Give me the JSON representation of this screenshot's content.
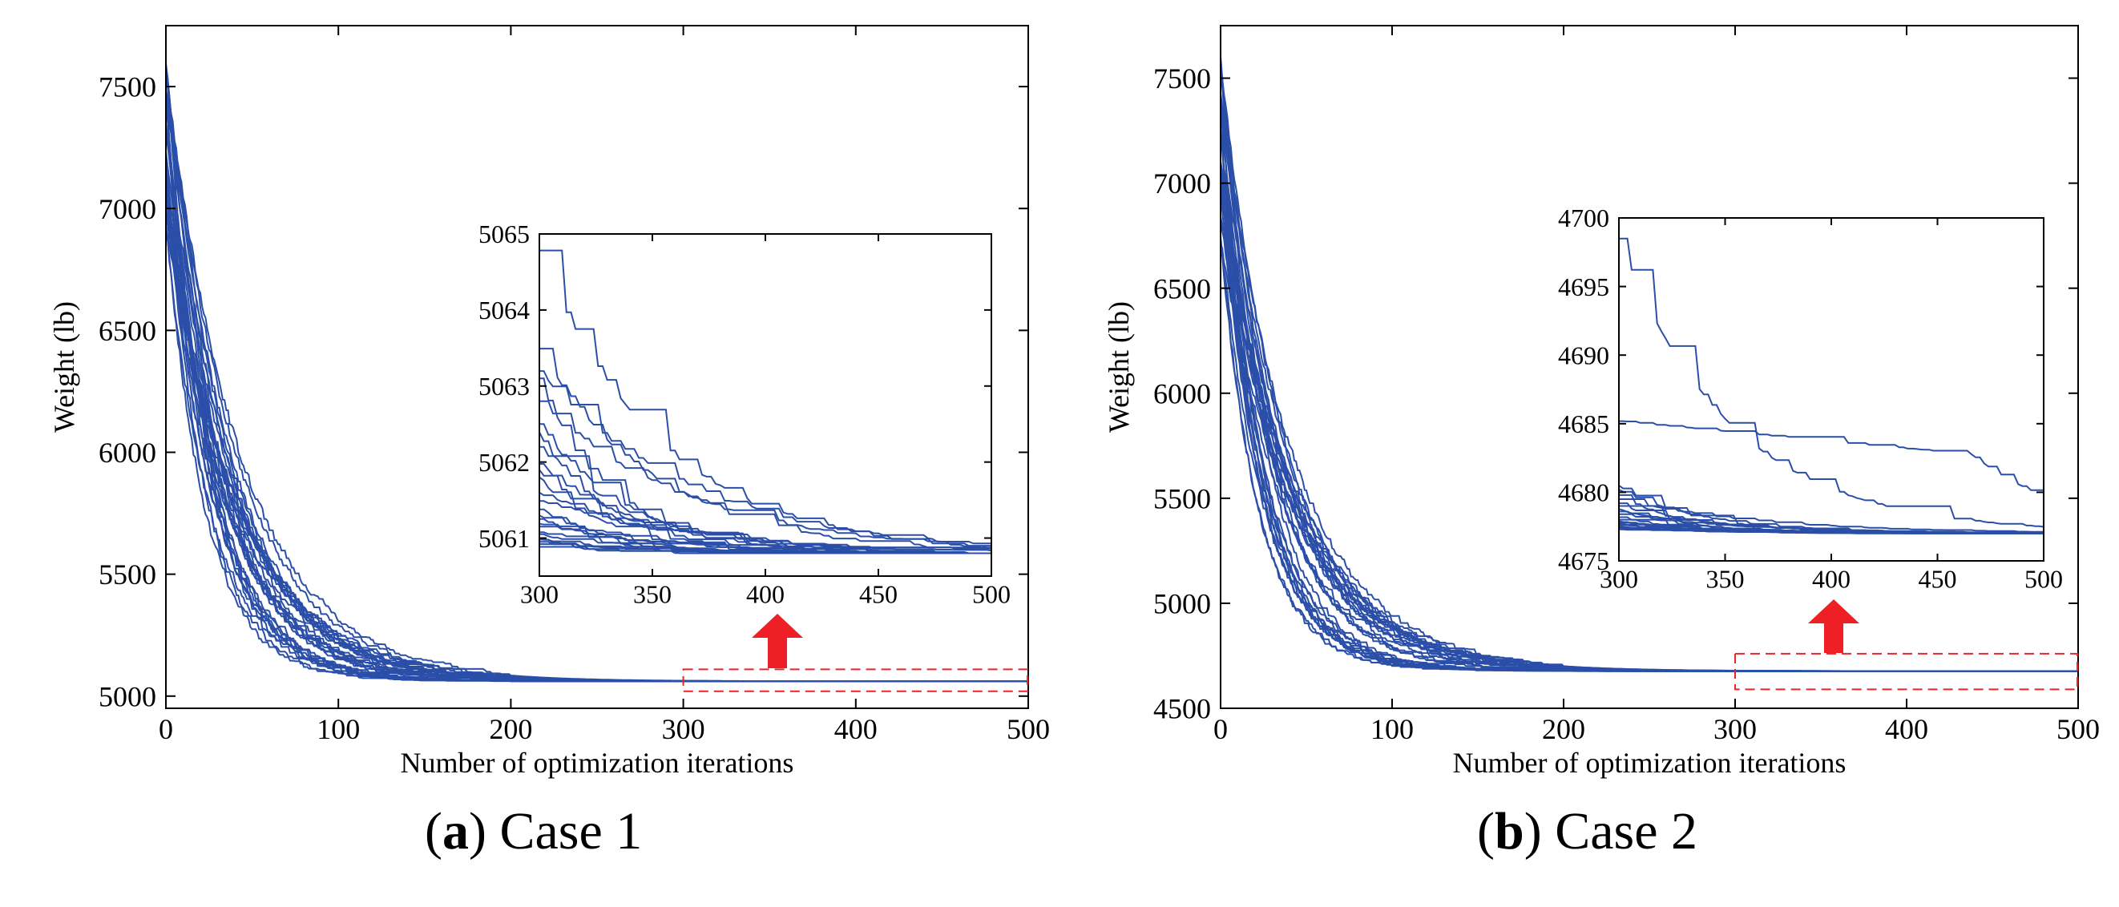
{
  "colors": {
    "line": "#2b4fa8",
    "axis": "#000000",
    "highlight_box": "#e8262a",
    "arrow": "#ee2026",
    "background": "#ffffff"
  },
  "icons": {
    "arrow": "up-arrow-icon"
  },
  "captions": [
    {
      "letter": "a",
      "text": "Case 1"
    },
    {
      "letter": "b",
      "text": "Case 2"
    }
  ],
  "chart_data": [
    {
      "type": "line",
      "id": "case1",
      "title": "",
      "xlabel": "Number of optimization iterations",
      "ylabel": "Weight (lb)",
      "xlim": [
        0,
        500
      ],
      "ylim": [
        4950,
        7750
      ],
      "xticks": [
        0,
        100,
        200,
        300,
        400,
        500
      ],
      "yticks": [
        5000,
        5500,
        6000,
        6500,
        7000,
        7500
      ],
      "grid": false,
      "series_count": 30,
      "start_weight_range": [
        6800,
        7600
      ],
      "final_weight": 5060.8,
      "zoom_region": {
        "x_range": [
          300,
          500
        ],
        "y_range": [
          5020,
          5110
        ]
      },
      "inset": {
        "xlim": [
          300,
          500
        ],
        "ylim": [
          5060.5,
          5065
        ],
        "xticks": [
          300,
          350,
          400,
          450,
          500
        ],
        "yticks": [
          5061,
          5062,
          5063,
          5064,
          5065
        ],
        "final_weight": 5060.8,
        "start_values": [
          5064.8,
          5063.5,
          5063.2,
          5063.1,
          5062.8,
          5062.5,
          5062.4,
          5062.2,
          5062.0,
          5061.9,
          5061.8,
          5061.6,
          5061.5,
          5061.4,
          5061.3,
          5061.25,
          5061.2,
          5061.15,
          5061.1,
          5061.05,
          5061.0,
          5060.98,
          5060.95,
          5060.92,
          5060.9
        ]
      }
    },
    {
      "type": "line",
      "id": "case2",
      "title": "",
      "xlabel": "Number of optimization iterations",
      "ylabel": "Weight (lb)",
      "xlim": [
        0,
        500
      ],
      "ylim": [
        4500,
        7750
      ],
      "xticks": [
        0,
        100,
        200,
        300,
        400,
        500
      ],
      "yticks": [
        4500,
        5000,
        5500,
        6000,
        6500,
        7000,
        7500
      ],
      "grid": false,
      "series_count": 30,
      "start_weight_range": [
        6700,
        7650
      ],
      "final_weight": 4677,
      "zoom_region": {
        "x_range": [
          300,
          500
        ],
        "y_range": [
          4590,
          4760
        ]
      },
      "inset": {
        "xlim": [
          300,
          500
        ],
        "ylim": [
          4675,
          4700
        ],
        "xticks": [
          300,
          350,
          400,
          450,
          500
        ],
        "yticks": [
          4675,
          4680,
          4685,
          4690,
          4695,
          4700
        ],
        "final_weight": 4677,
        "start_values": [
          4698.5,
          4685.2,
          4680.5,
          4680.2,
          4679.8,
          4679.5,
          4679.2,
          4679.0,
          4678.8,
          4678.6,
          4678.4,
          4678.2,
          4678.0,
          4677.9,
          4677.8,
          4677.7,
          4677.6,
          4677.5,
          4677.4,
          4677.3
        ]
      }
    }
  ]
}
